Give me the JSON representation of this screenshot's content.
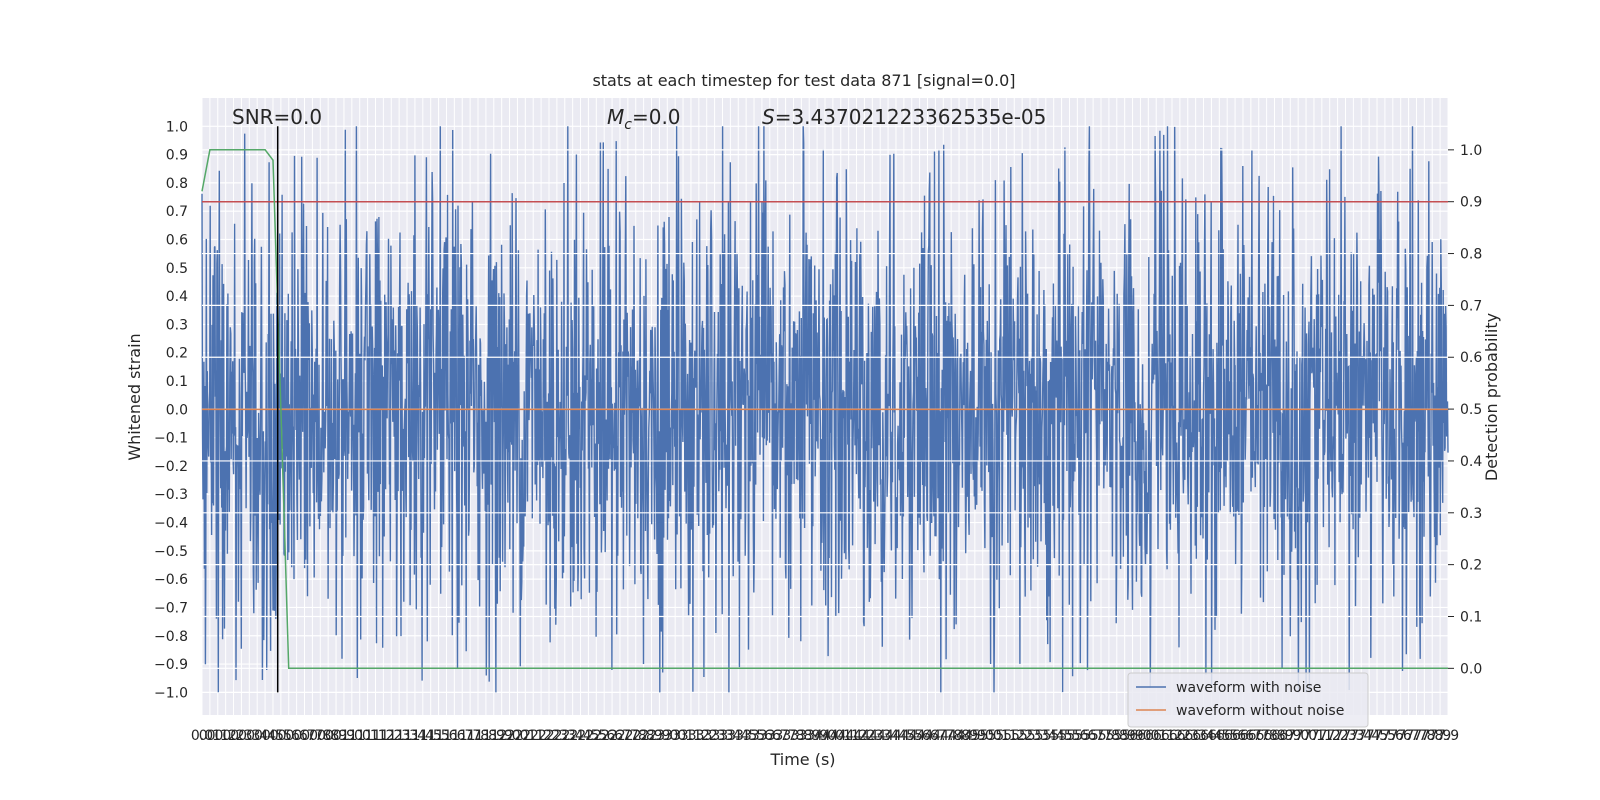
{
  "chart_data": {
    "type": "line",
    "title": "stats at each timestep for test data 871 [signal=0.0]",
    "xlabel": "Time (s)",
    "ylabel": "Whitened strain",
    "ylabel_right": "Detection probability",
    "xlim": [
      0.0,
      7.9
    ],
    "ylim": [
      -1.08,
      1.1
    ],
    "ylim_right": [
      -0.09,
      1.1
    ],
    "grid": true,
    "legend_position": "lower-right",
    "x_tick_step": 0.05,
    "y_ticks": [
      1.0,
      0.9,
      0.8,
      0.7,
      0.6,
      0.5,
      0.4,
      0.3,
      0.2,
      0.1,
      0.0,
      -0.1,
      -0.2,
      -0.3,
      -0.4,
      -0.5,
      -0.6,
      -0.7,
      -0.8,
      -0.9,
      -1.0
    ],
    "y_tick_labels": [
      "1.0",
      "0.9",
      "0.8",
      "0.7",
      "0.6",
      "0.5",
      "0.4",
      "0.3",
      "0.2",
      "0.1",
      "0.0",
      "−0.1",
      "−0.2",
      "−0.3",
      "−0.4",
      "−0.5",
      "−0.6",
      "−0.7",
      "−0.8",
      "−0.9",
      "−1.0"
    ],
    "y_ticks_right": [
      1.0,
      0.9,
      0.8,
      0.7,
      0.6,
      0.5,
      0.4,
      0.3,
      0.2,
      0.1,
      0.0
    ],
    "y_tick_labels_right": [
      "1.0",
      "0.9",
      "0.8",
      "0.7",
      "0.6",
      "0.5",
      "0.4",
      "0.3",
      "0.2",
      "0.1",
      "0.0"
    ],
    "annotations": {
      "snr": "SNR=0.0",
      "mc_symbol": "M",
      "mc_sub": "c",
      "mc_value": "=0.0",
      "s_symbol": "S",
      "s_value": "=3.437021223362535e-05"
    },
    "series": [
      {
        "name": "waveform with noise",
        "color": "#4c72b0",
        "description_level": "dense noise, envelope roughly ±0.6 with spikes to about ±1.0"
      },
      {
        "name": "waveform without noise",
        "color": "#dd8452",
        "y_constant": 0.0
      },
      {
        "name": "detection probability",
        "color": "#55a868",
        "axis": "right",
        "x": [
          0.0,
          0.05,
          0.1,
          0.2,
          0.3,
          0.35,
          0.4,
          0.45,
          0.5,
          0.55,
          7.9
        ],
        "y": [
          0.92,
          1.0,
          1.0,
          1.0,
          1.0,
          1.0,
          1.0,
          0.98,
          0.5,
          0.0,
          0.0
        ]
      }
    ],
    "threshold_line": {
      "color": "#c44e52",
      "y_right": 0.9
    },
    "vertical_marker": {
      "color": "#000000",
      "x": 0.48
    }
  },
  "legend": {
    "noisy_label": "waveform with noise",
    "clean_label": "waveform without noise"
  }
}
